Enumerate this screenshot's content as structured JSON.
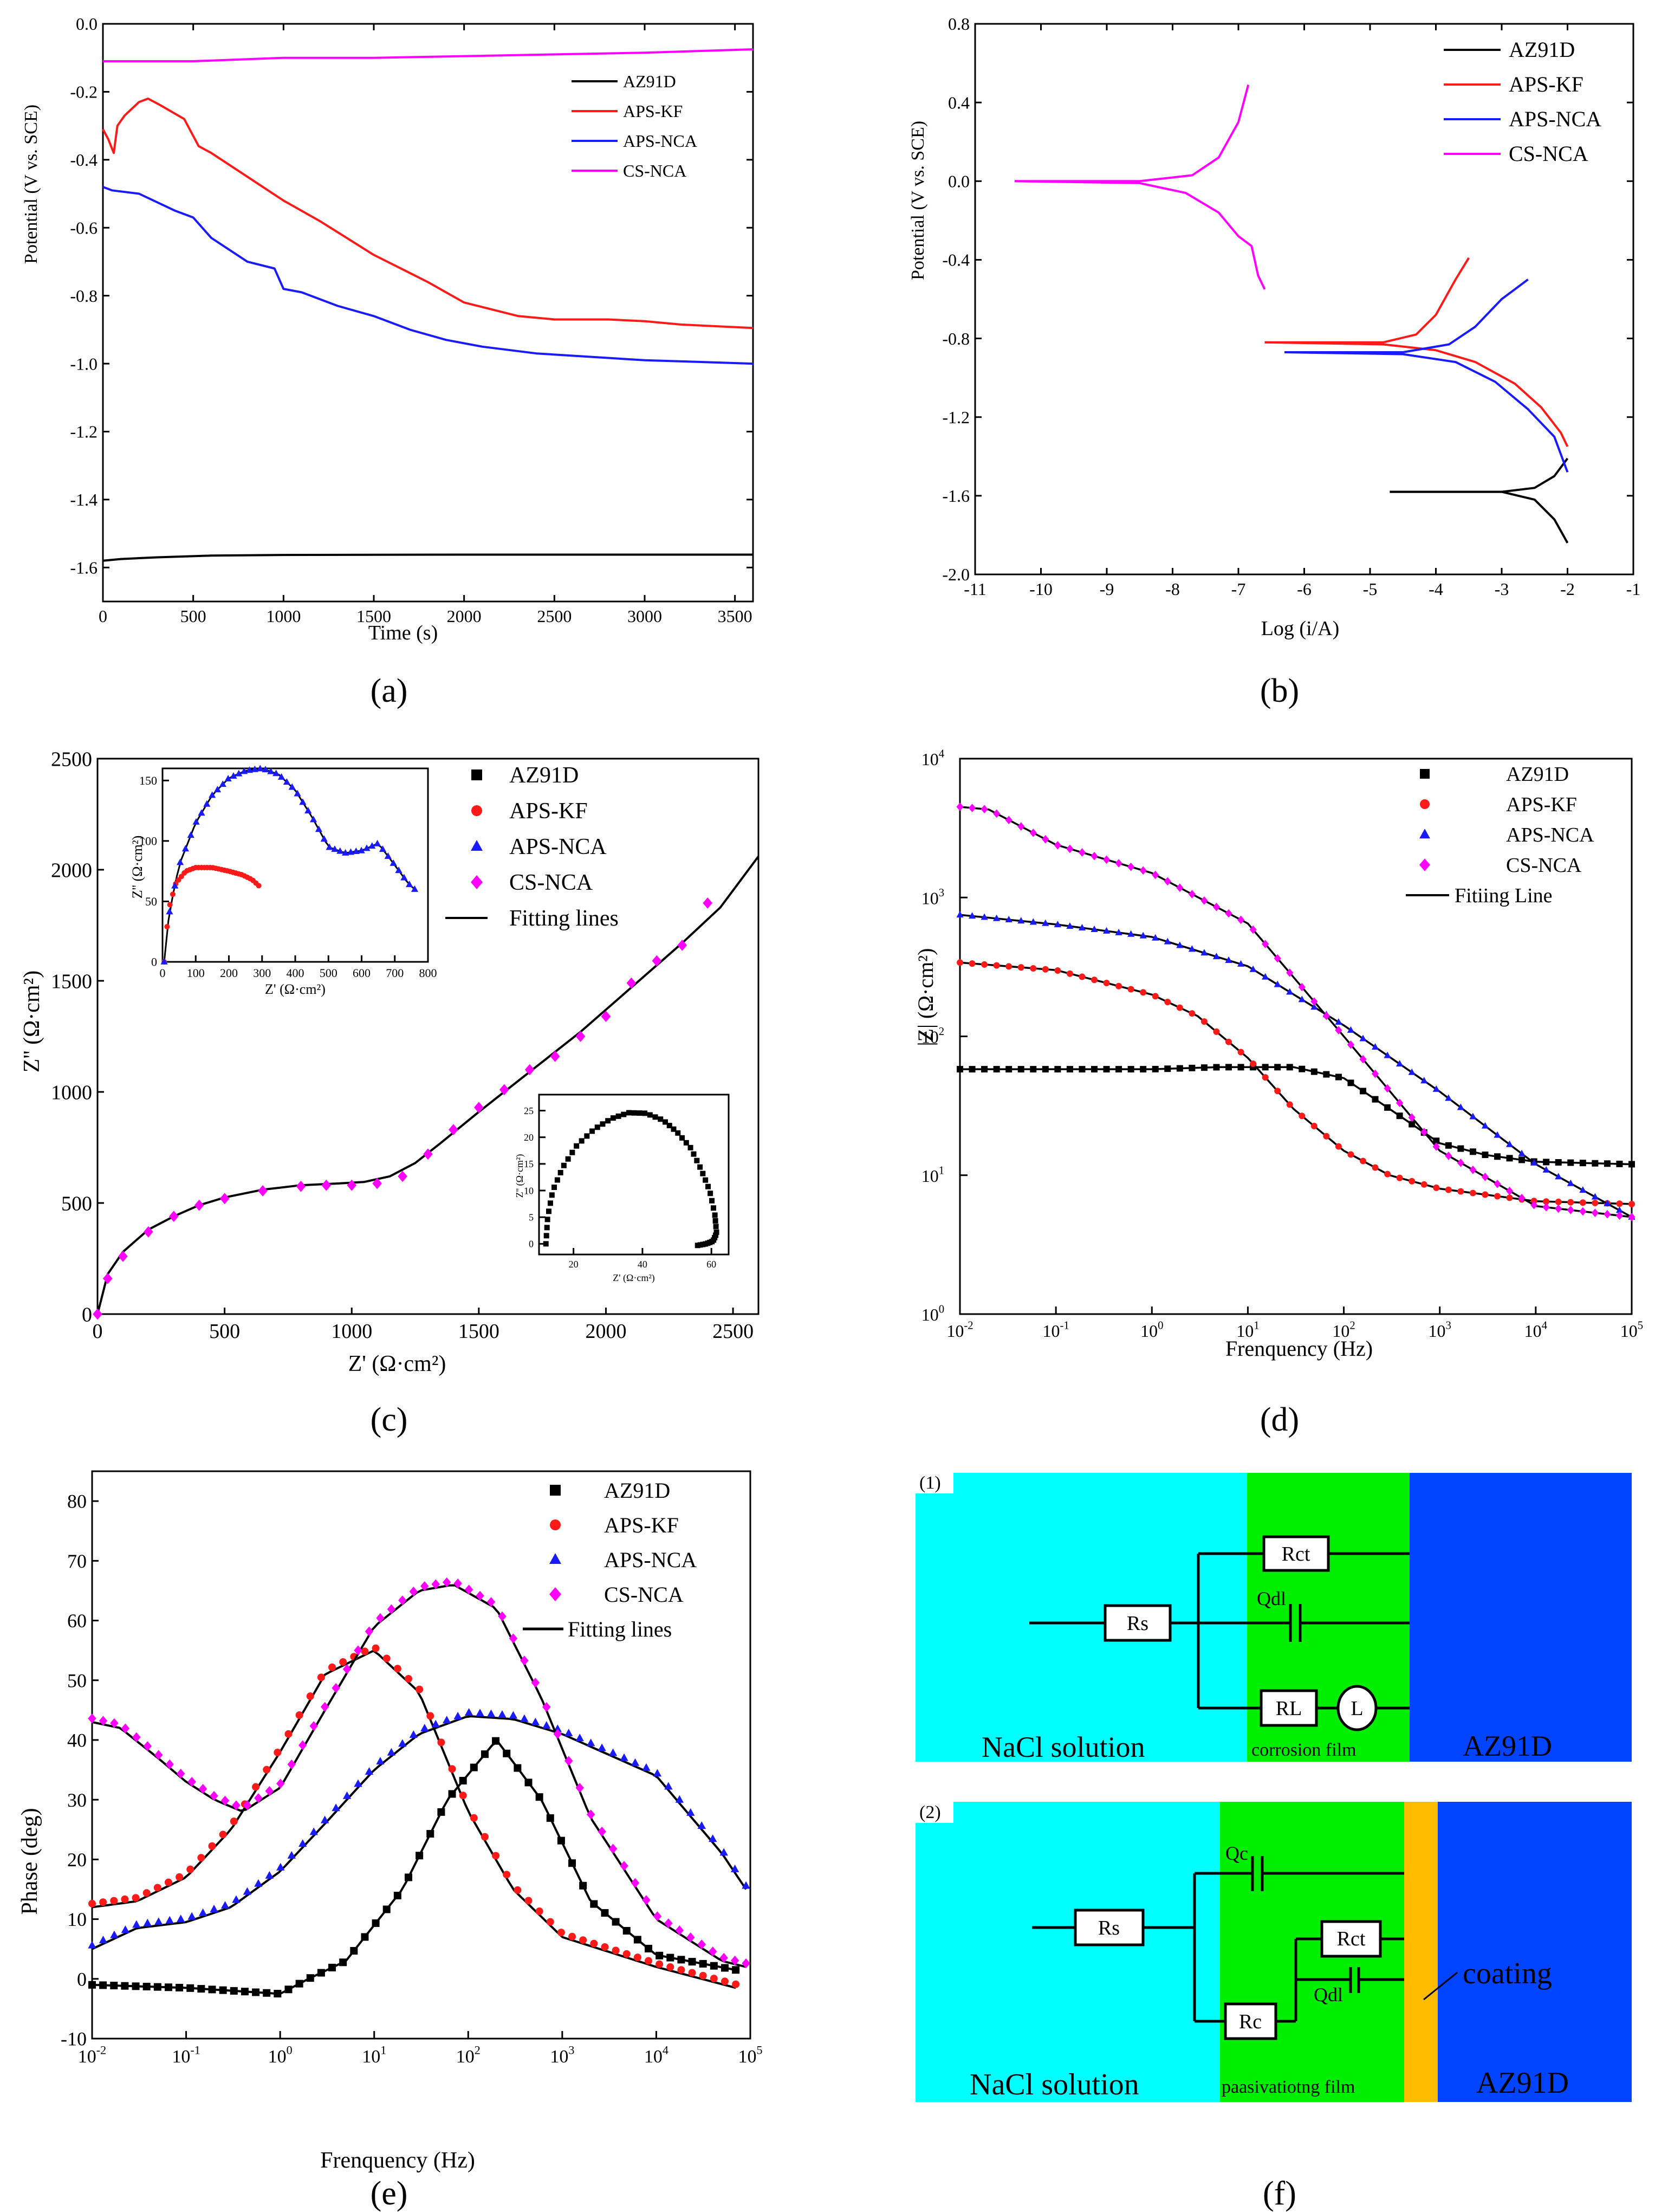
{
  "colors": {
    "AZ91D": "#000000",
    "APS-KF": "#ff1a1a",
    "APS-NCA": "#1a1aff",
    "CS-NCA": "#ff00ff",
    "fit": "#000000",
    "cyan": "#00ffff",
    "green": "#00ee00",
    "blue": "#0044ff",
    "orange": "#ffbb00"
  },
  "captions": {
    "a": "(a)",
    "b": "(b)",
    "c": "(c)",
    "d": "(d)",
    "e": "(e)",
    "f": "(f)"
  },
  "chart_data": [
    {
      "id": "a",
      "type": "line",
      "xlabel": "Time (s)",
      "ylabel": "Potential (V vs. SCE)",
      "xlim": [
        0,
        3600
      ],
      "ylim": [
        -1.7,
        0.0
      ],
      "xticks": [
        0,
        500,
        1000,
        1500,
        2000,
        2500,
        3000,
        3500
      ],
      "yticks": [
        0.0,
        -0.2,
        -0.4,
        -0.6,
        -0.8,
        -1.0,
        -1.2,
        -1.4,
        -1.6
      ],
      "ytick_labels": [
        "0.0",
        "-0.2",
        "-0.4",
        "-0.6",
        "-0.8",
        "-1.0",
        "-1.2",
        "-1.4",
        "-1.6"
      ],
      "legend": "top-right",
      "series": [
        {
          "name": "AZ91D",
          "x": [
            0,
            100,
            300,
            600,
            1000,
            2000,
            3000,
            3600
          ],
          "y": [
            -1.58,
            -1.575,
            -1.57,
            -1.565,
            -1.563,
            -1.562,
            -1.562,
            -1.562
          ]
        },
        {
          "name": "APS-KF",
          "x": [
            0,
            30,
            60,
            80,
            120,
            200,
            250,
            320,
            450,
            500,
            530,
            600,
            800,
            1000,
            1200,
            1500,
            1800,
            2000,
            2300,
            2500,
            2800,
            3000,
            3200,
            3400,
            3600
          ],
          "y": [
            -0.31,
            -0.34,
            -0.38,
            -0.3,
            -0.27,
            -0.23,
            -0.22,
            -0.24,
            -0.28,
            -0.33,
            -0.36,
            -0.38,
            -0.45,
            -0.52,
            -0.58,
            -0.68,
            -0.76,
            -0.82,
            -0.86,
            -0.87,
            -0.87,
            -0.875,
            -0.885,
            -0.89,
            -0.895
          ]
        },
        {
          "name": "APS-NCA",
          "x": [
            0,
            50,
            200,
            400,
            500,
            550,
            600,
            800,
            950,
            1000,
            1100,
            1300,
            1500,
            1700,
            1900,
            2100,
            2400,
            2700,
            3000,
            3300,
            3600
          ],
          "y": [
            -0.48,
            -0.49,
            -0.5,
            -0.55,
            -0.57,
            -0.6,
            -0.63,
            -0.7,
            -0.72,
            -0.78,
            -0.79,
            -0.83,
            -0.86,
            -0.9,
            -0.93,
            -0.95,
            -0.97,
            -0.98,
            -0.99,
            -0.995,
            -1.0
          ]
        },
        {
          "name": "CS-NCA",
          "x": [
            0,
            500,
            1000,
            1500,
            2000,
            2500,
            3000,
            3600
          ],
          "y": [
            -0.11,
            -0.11,
            -0.1,
            -0.1,
            -0.095,
            -0.09,
            -0.085,
            -0.075
          ]
        }
      ]
    },
    {
      "id": "b",
      "type": "line",
      "xlabel": "Log (i/A)",
      "ylabel": "Potential (V vs. SCE)",
      "xlim": [
        -11,
        -1
      ],
      "ylim": [
        -2.0,
        0.8
      ],
      "xticks": [
        -11,
        -10,
        -9,
        -8,
        -7,
        -6,
        -5,
        -4,
        -3,
        -2,
        -1
      ],
      "yticks": [
        0.8,
        0.4,
        0.0,
        -0.4,
        -0.8,
        -1.2,
        -1.6,
        -2.0
      ],
      "ytick_labels": [
        "0.8",
        "0.4",
        "0.0",
        "-0.4",
        "-0.8",
        "-1.2",
        "-1.6",
        "-2.0"
      ],
      "legend": "top-right",
      "series": [
        {
          "name": "AZ91D",
          "x": [
            -4.7,
            -3.0,
            -2.5,
            -2.2,
            -2.0
          ],
          "y": [
            -1.58,
            -1.58,
            -1.56,
            -1.5,
            -1.41
          ],
          "x2": [
            -4.7,
            -3.0,
            -2.5,
            -2.2,
            -2.0
          ],
          "y2": [
            -1.58,
            -1.58,
            -1.62,
            -1.72,
            -1.84
          ]
        },
        {
          "name": "APS-KF",
          "x": [
            -6.6,
            -4.8,
            -4.3,
            -4.0,
            -3.7,
            -3.5
          ],
          "y": [
            -0.82,
            -0.82,
            -0.78,
            -0.68,
            -0.5,
            -0.39
          ],
          "x2": [
            -6.6,
            -4.8,
            -4.0,
            -3.4,
            -2.8,
            -2.4,
            -2.1,
            -2.0
          ],
          "y2": [
            -0.82,
            -0.83,
            -0.86,
            -0.92,
            -1.03,
            -1.15,
            -1.28,
            -1.35
          ]
        },
        {
          "name": "APS-NCA",
          "x": [
            -6.3,
            -4.5,
            -3.8,
            -3.4,
            -3.0,
            -2.6
          ],
          "y": [
            -0.87,
            -0.87,
            -0.83,
            -0.74,
            -0.6,
            -0.5
          ],
          "x2": [
            -6.3,
            -4.5,
            -3.7,
            -3.1,
            -2.6,
            -2.2,
            -2.0
          ],
          "y2": [
            -0.87,
            -0.88,
            -0.92,
            -1.02,
            -1.16,
            -1.3,
            -1.48
          ]
        },
        {
          "name": "CS-NCA",
          "x": [
            -10.4,
            -8.5,
            -7.7,
            -7.3,
            -7.0,
            -6.85
          ],
          "y": [
            0.0,
            0.0,
            0.03,
            0.12,
            0.3,
            0.49
          ],
          "x2": [
            -10.4,
            -8.5,
            -7.8,
            -7.3,
            -7.0,
            -6.8,
            -6.7,
            -6.6
          ],
          "y2": [
            0.0,
            -0.01,
            -0.06,
            -0.16,
            -0.28,
            -0.33,
            -0.48,
            -0.55
          ]
        }
      ]
    },
    {
      "id": "c",
      "type": "scatter",
      "xlabel": "Z' (Ω·cm²)",
      "ylabel": "Z'' (Ω·cm²)",
      "xlim": [
        0,
        2600
      ],
      "ylim": [
        0,
        2500
      ],
      "xticks": [
        0,
        500,
        1000,
        1500,
        2000,
        2500
      ],
      "yticks": [
        0,
        500,
        1000,
        1500,
        2000,
        2500
      ],
      "legend": "top-right",
      "legend_entries": [
        "AZ91D",
        "APS-KF",
        "APS-NCA",
        "CS-NCA",
        "Fitting lines"
      ],
      "series": [
        {
          "name": "CS-NCA",
          "x": [
            0,
            40,
            100,
            200,
            300,
            400,
            500,
            650,
            800,
            900,
            1000,
            1100,
            1200,
            1300,
            1400,
            1500,
            1600,
            1700,
            1800,
            1900,
            2000,
            2100,
            2200,
            2300,
            2400
          ],
          "y": [
            0,
            160,
            260,
            370,
            440,
            490,
            520,
            555,
            575,
            580,
            580,
            588,
            620,
            720,
            830,
            930,
            1010,
            1100,
            1160,
            1250,
            1340,
            1490,
            1590,
            1660,
            1850
          ]
        },
        {
          "name": "Fitting lines",
          "x": [
            0,
            40,
            100,
            200,
            300,
            400,
            500,
            650,
            800,
            950,
            1050,
            1150,
            1250,
            1350,
            1500,
            1700,
            1900,
            2100,
            2300,
            2450,
            2600
          ],
          "y": [
            0,
            180,
            280,
            380,
            440,
            490,
            525,
            560,
            580,
            588,
            595,
            620,
            680,
            770,
            910,
            1090,
            1270,
            1470,
            1670,
            1830,
            2060
          ]
        }
      ],
      "inset_top": {
        "xlabel": "Z' (Ω·cm²)",
        "ylabel": "Z'' (Ω·cm²)",
        "xlim": [
          0,
          800
        ],
        "ylim": [
          0,
          160
        ],
        "xticks": [
          0,
          100,
          200,
          300,
          400,
          500,
          600,
          700,
          800
        ],
        "yticks": [
          0,
          50,
          100,
          150
        ],
        "series": [
          {
            "name": "APS-KF",
            "x": [
              5,
              10,
              20,
              40,
              70,
              100,
              150,
              200,
              240,
              270,
              290
            ],
            "y": [
              0,
              20,
              45,
              65,
              75,
              78,
              78,
              75,
              72,
              68,
              63
            ]
          },
          {
            "name": "APS-NCA",
            "x": [
              5,
              20,
              50,
              100,
              150,
              200,
              250,
              300,
              350,
              400,
              450,
              500,
              550,
              600,
              650,
              700,
              740,
              760
            ],
            "y": [
              0,
              40,
              80,
              115,
              138,
              152,
              158,
              160,
              155,
              142,
              120,
              95,
              90,
              92,
              98,
              80,
              65,
              60
            ]
          }
        ]
      },
      "inset_bottom": {
        "xlabel": "Z' (Ω·cm²)",
        "ylabel": "Z'' (Ω·cm²)",
        "xlim": [
          10,
          65
        ],
        "ylim": [
          -2,
          28
        ],
        "xticks": [
          20,
          40,
          60
        ],
        "yticks": [
          0,
          5,
          10,
          15,
          20,
          25
        ],
        "series": [
          {
            "name": "AZ91D",
            "x": [
              12,
              12.5,
              14,
              17,
              21,
              26,
              31,
              36,
              41,
              46,
              50,
              54,
              57,
              59.5,
              61,
              61.5,
              60.5,
              58.5,
              56
            ],
            "y": [
              0,
              5,
              10,
              14.5,
              18.5,
              21.5,
              23.5,
              24.6,
              24.5,
              23.2,
              21,
              18,
              14,
              10,
              5.5,
              2,
              0.5,
              0,
              -0.3
            ]
          }
        ]
      }
    },
    {
      "id": "d",
      "type": "line",
      "xlabel": "Frenquency (Hz)",
      "ylabel": "|Z| (Ω·cm²)",
      "xscale": "log",
      "yscale": "log",
      "xlim": [
        0.01,
        100000
      ],
      "ylim": [
        1,
        10000
      ],
      "xtick_exp": [
        "-2",
        "-1",
        "0",
        "1",
        "2",
        "3",
        "4",
        "5"
      ],
      "ytick_exp": [
        "0",
        "1",
        "2",
        "3",
        "4"
      ],
      "legend": "top-right",
      "legend_entries": [
        "AZ91D",
        "APS-KF",
        "APS-NCA",
        "CS-NCA",
        "Fitiing Line"
      ],
      "series": [
        {
          "name": "AZ91D",
          "x": [
            0.01,
            0.1,
            1,
            5,
            30,
            100,
            300,
            1000,
            3000,
            10000,
            100000
          ],
          "y": [
            58,
            58,
            58,
            60,
            60,
            50,
            30,
            17,
            14,
            12.5,
            12
          ]
        },
        {
          "name": "APS-KF",
          "x": [
            0.01,
            0.1,
            1,
            3,
            10,
            30,
            100,
            300,
            1000,
            10000,
            100000
          ],
          "y": [
            340,
            300,
            200,
            140,
            70,
            30,
            15,
            10,
            8,
            6.5,
            6.2
          ]
        },
        {
          "name": "APS-NCA",
          "x": [
            0.01,
            0.1,
            1,
            10,
            100,
            1000,
            10000,
            50000,
            100000
          ],
          "y": [
            750,
            640,
            520,
            320,
            120,
            40,
            12,
            6.5,
            5
          ]
        },
        {
          "name": "CS-NCA",
          "x": [
            0.01,
            0.02,
            0.1,
            1,
            10,
            100,
            1000,
            10000,
            100000
          ],
          "y": [
            4500,
            4300,
            2400,
            1500,
            650,
            100,
            15,
            6,
            5
          ]
        }
      ]
    },
    {
      "id": "e",
      "type": "line",
      "xlabel": "Frenquency (Hz)",
      "ylabel": "Phase (deg)",
      "xscale": "log",
      "xlim": [
        0.01,
        100000
      ],
      "ylim": [
        -10,
        85
      ],
      "xtick_exp": [
        "-2",
        "-1",
        "0",
        "1",
        "2",
        "3",
        "4",
        "5"
      ],
      "yticks": [
        -10,
        0,
        10,
        20,
        30,
        40,
        50,
        60,
        70,
        80
      ],
      "legend": "top-right",
      "legend_entries": [
        "AZ91D",
        "APS-KF",
        "APS-NCA",
        "CS-NCA",
        "Fitting lines"
      ],
      "series": [
        {
          "name": "AZ91D",
          "x": [
            0.01,
            0.1,
            1,
            2,
            5,
            20,
            60,
            200,
            600,
            2000,
            10000,
            70000
          ],
          "y": [
            -1,
            -1.5,
            -2.5,
            0,
            3,
            15,
            30,
            40,
            30,
            13,
            4,
            1.5
          ]
        },
        {
          "name": "APS-KF",
          "x": [
            0.01,
            0.03,
            0.1,
            0.3,
            1,
            3,
            10,
            30,
            100,
            300,
            1000,
            10000,
            70000
          ],
          "y": [
            12,
            13,
            17,
            25,
            38,
            51,
            55,
            48,
            28,
            15,
            7,
            2,
            -1.5
          ]
        },
        {
          "name": "APS-NCA",
          "x": [
            0.01,
            0.03,
            0.1,
            0.3,
            1,
            3,
            10,
            30,
            100,
            300,
            1000,
            10000,
            50000,
            90000
          ],
          "y": [
            5,
            8.5,
            9.5,
            12,
            18,
            26,
            35,
            41,
            44,
            43.5,
            41,
            34,
            21,
            15
          ]
        },
        {
          "name": "CS-NCA",
          "x": [
            0.01,
            0.02,
            0.05,
            0.1,
            0.2,
            0.4,
            1,
            3,
            10,
            30,
            70,
            200,
            600,
            2000,
            10000,
            50000,
            90000
          ],
          "y": [
            43,
            42,
            37,
            33,
            30,
            28,
            32,
            45,
            59,
            65,
            66,
            62,
            47,
            27,
            10,
            3,
            2
          ]
        }
      ]
    }
  ],
  "circuit": {
    "panel1_tag": "(1)",
    "panel2_tag": "(2)",
    "p1": {
      "Rs": "Rs",
      "Rct": "Rct",
      "Qdl": "Qdl",
      "RL": "RL",
      "L": "L",
      "solution": "NaCl solution",
      "film": "corrosion film",
      "substrate": "AZ91D"
    },
    "p2": {
      "Rs": "Rs",
      "Qc": "Qc",
      "Rct": "Rct",
      "Qdl": "Qdl",
      "Rc": "Rc",
      "coating": "coating",
      "solution": "NaCl solution",
      "film": "paasivatiotng film",
      "substrate": "AZ91D"
    }
  }
}
